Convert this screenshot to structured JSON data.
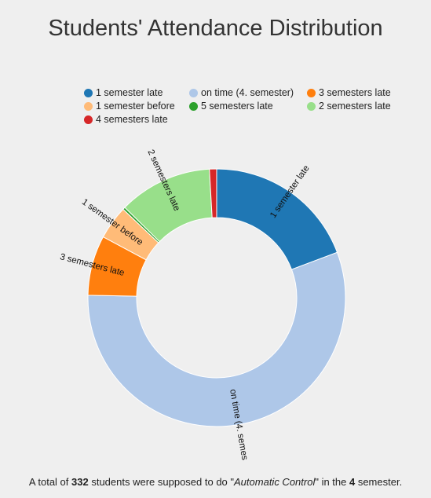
{
  "chart_data": {
    "type": "pie",
    "variant": "donut",
    "title": "Students' Attendance Distribution",
    "legend_position": "top",
    "slices": [
      {
        "label": "1 semester late",
        "value": 64,
        "color": "#1f77b4"
      },
      {
        "label": "on time (4. semester)",
        "value": 186,
        "color": "#aec7e8"
      },
      {
        "label": "3 semesters late",
        "value": 25,
        "color": "#ff7f0e"
      },
      {
        "label": "1 semester before",
        "value": 14,
        "color": "#ffbb78"
      },
      {
        "label": "5 semesters late",
        "value": 1,
        "color": "#2ca02c"
      },
      {
        "label": "2 semesters late",
        "value": 39,
        "color": "#98df8a"
      },
      {
        "label": "4 semesters late",
        "value": 3,
        "color": "#d62728"
      }
    ],
    "slice_label_texts": [
      "1 semester late",
      "on time (4. semes",
      "3 semesters late",
      "1 semester before",
      "",
      "2 semesters late",
      ""
    ]
  },
  "caption": {
    "prefix": "A total of ",
    "count": "332",
    "middle": " students were supposed to do \"",
    "course": "Automatic Control",
    "middle2": "\" in the ",
    "semester": "4",
    "suffix": " semester."
  }
}
